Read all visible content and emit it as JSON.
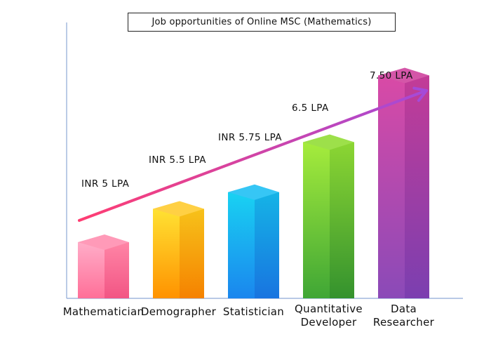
{
  "title": "Job opportunities of Online MSC (Mathematics)",
  "chart_data": {
    "type": "bar",
    "title": "Job opportunities of Online MSC (Mathematics)",
    "categories": [
      "Mathematician",
      "Demographer",
      "Statistician",
      "Quantitative\nDeveloper",
      "Data\nResearcher"
    ],
    "values": [
      5,
      5.5,
      5.75,
      6.5,
      7.5
    ],
    "value_labels": [
      "INR 5 LPA",
      "INR 5.5 LPA",
      "INR 5.75 LPA",
      "6.5 LPA",
      "7.50 LPA"
    ],
    "xlabel": "",
    "ylabel": "",
    "grid": false,
    "legend": "none",
    "trend_arrow": true,
    "colors": [
      {
        "front": [
          "#ffadc8",
          "#ff6f98"
        ],
        "side": [
          "#ff85a6",
          "#f25584"
        ],
        "top": "#ff9ab8"
      },
      {
        "front": [
          "#ffe233",
          "#ff9200"
        ],
        "side": [
          "#f7c21a",
          "#f58200"
        ],
        "top": "#ffd044"
      },
      {
        "front": [
          "#19d2f2",
          "#1a86ee"
        ],
        "side": [
          "#15b4e6",
          "#1874e0"
        ],
        "top": "#36c6f5"
      },
      {
        "front": [
          "#a6ec3c",
          "#3fa635"
        ],
        "side": [
          "#8cd633",
          "#34922e"
        ],
        "top": "#9de04a"
      },
      {
        "front": [
          "#d94aa6",
          "#8a4ab8"
        ],
        "side": [
          "#c33c97",
          "#7b3fb0"
        ],
        "top": "#d456a8"
      }
    ],
    "arrow_colors": [
      "#ff3d72",
      "#a44ad9"
    ]
  }
}
